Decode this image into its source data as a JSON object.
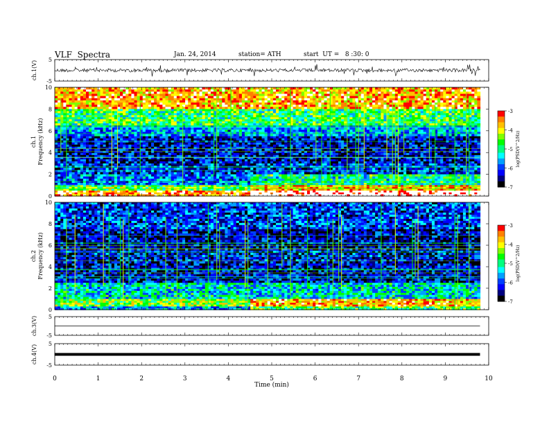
{
  "header": {
    "title": "VLF  Spectra",
    "date": "Jan. 24, 2014",
    "station": "station= ATH",
    "start": "start  UT =   8 :30: 0"
  },
  "colors": {
    "colormap": [
      "#000000",
      "#000080",
      "#0000ff",
      "#0040ff",
      "#00a0ff",
      "#00ffff",
      "#00ff80",
      "#00ff00",
      "#80ff00",
      "#ffff00",
      "#ffc000",
      "#ff8000",
      "#ff0000",
      "#ffffff"
    ],
    "trace": "#000000"
  },
  "chart_data": [
    {
      "id": "ch1-waveform",
      "type": "line",
      "ylabel": "ch.1(V)",
      "ylim": [
        -5,
        5
      ],
      "yticks": [
        "5",
        "-5"
      ],
      "baseline": 0,
      "style": "noisy"
    },
    {
      "id": "ch1-spectrogram",
      "type": "heatmap",
      "ylabel_channel": "ch.1",
      "ylabel": "Frequency  (kHz)",
      "yticks": [
        "0",
        "2",
        "4",
        "6",
        "8",
        "10"
      ],
      "ylim": [
        0,
        10
      ],
      "xlim": [
        0,
        10
      ],
      "data_end_min": 9.8,
      "colorbar": {
        "label": "log(PSD(V^2/Hz)",
        "ticks": [
          "-3",
          "-4",
          "-5",
          "-6",
          "-7"
        ],
        "range": [
          -7,
          -3
        ]
      },
      "bands": [
        {
          "from": 8.0,
          "to": 10.0,
          "level": -3.6
        },
        {
          "from": 6.5,
          "to": 8.0,
          "level": -4.8
        },
        {
          "from": 5.5,
          "to": 6.5,
          "level": -5.6
        },
        {
          "from": 3.0,
          "to": 5.5,
          "level": -6.3
        },
        {
          "from": 2.0,
          "to": 3.0,
          "level": -6.1
        },
        {
          "from": 1.0,
          "to": 2.0,
          "level": -5.8
        },
        {
          "from": 0.5,
          "to": 1.0,
          "level": -4.6
        },
        {
          "from": 0.0,
          "to": 0.5,
          "level": -3.4
        }
      ],
      "level_shift": {
        "at_min": 4.5,
        "from": 0.0,
        "to": 2.4,
        "delta": 0.8
      }
    },
    {
      "id": "ch2-spectrogram",
      "type": "heatmap",
      "ylabel_channel": "ch.2",
      "ylabel": "Frequency  (kHz)",
      "yticks": [
        "0",
        "2",
        "4",
        "6",
        "8",
        "10"
      ],
      "ylim": [
        0,
        10
      ],
      "xlim": [
        0,
        10
      ],
      "data_end_min": 9.8,
      "colorbar": {
        "label": "log(PSD(V^2/Hz)",
        "ticks": [
          "-3",
          "-4",
          "-5",
          "-6",
          "-7"
        ],
        "range": [
          -7,
          -3
        ]
      },
      "bands": [
        {
          "from": 7.5,
          "to": 10.0,
          "level": -6.0
        },
        {
          "from": 5.5,
          "to": 7.5,
          "level": -6.4
        },
        {
          "from": 4.5,
          "to": 5.5,
          "level": -6.2
        },
        {
          "from": 2.5,
          "to": 4.5,
          "level": -6.3
        },
        {
          "from": 1.0,
          "to": 2.5,
          "level": -5.3
        },
        {
          "from": 0.3,
          "to": 1.0,
          "level": -4.5
        },
        {
          "from": 0.0,
          "to": 0.3,
          "level": -5.6
        }
      ],
      "level_shift": {
        "at_min": 4.5,
        "from": 0.0,
        "to": 2.4,
        "delta": 0.9
      }
    },
    {
      "id": "ch3-waveform",
      "type": "line",
      "ylabel": "ch.3(V)",
      "ylim": [
        -5,
        5
      ],
      "yticks": [
        "5",
        "-5"
      ],
      "baseline": 0,
      "style": "flat"
    },
    {
      "id": "ch4-waveform",
      "type": "line",
      "ylabel": "ch.4(V)",
      "ylim": [
        -5,
        5
      ],
      "yticks": [
        "5",
        "-5"
      ],
      "baseline": 0,
      "style": "thick"
    }
  ],
  "xaxis": {
    "label": "Time  (min)",
    "ticks": [
      "0",
      "1",
      "2",
      "3",
      "4",
      "5",
      "6",
      "7",
      "8",
      "9",
      "10"
    ],
    "range": [
      0,
      10
    ]
  }
}
